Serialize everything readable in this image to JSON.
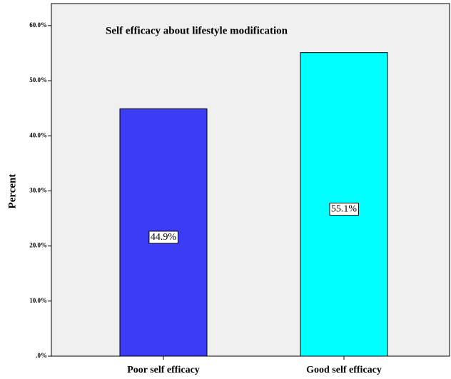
{
  "chart_data": {
    "type": "bar",
    "title": "Self efficacy about lifestyle modification",
    "y_label": "Percent",
    "categories": [
      "Poor self efficacy",
      "Good self efficacy"
    ],
    "values": [
      44.9,
      55.1
    ],
    "value_labels": [
      "44.9%",
      "55.1%"
    ],
    "colors": [
      "#3c3cf4",
      "#00ffff"
    ],
    "ylim": [
      0,
      64
    ],
    "yticks": [
      {
        "value": 0,
        "label": ".0%"
      },
      {
        "value": 10,
        "label": "10.0%"
      },
      {
        "value": 20,
        "label": "20.0%"
      },
      {
        "value": 30,
        "label": "30.0%"
      },
      {
        "value": 40,
        "label": "40.0%"
      },
      {
        "value": 50,
        "label": "50.0%"
      },
      {
        "value": 60,
        "label": "60.0%"
      }
    ]
  }
}
